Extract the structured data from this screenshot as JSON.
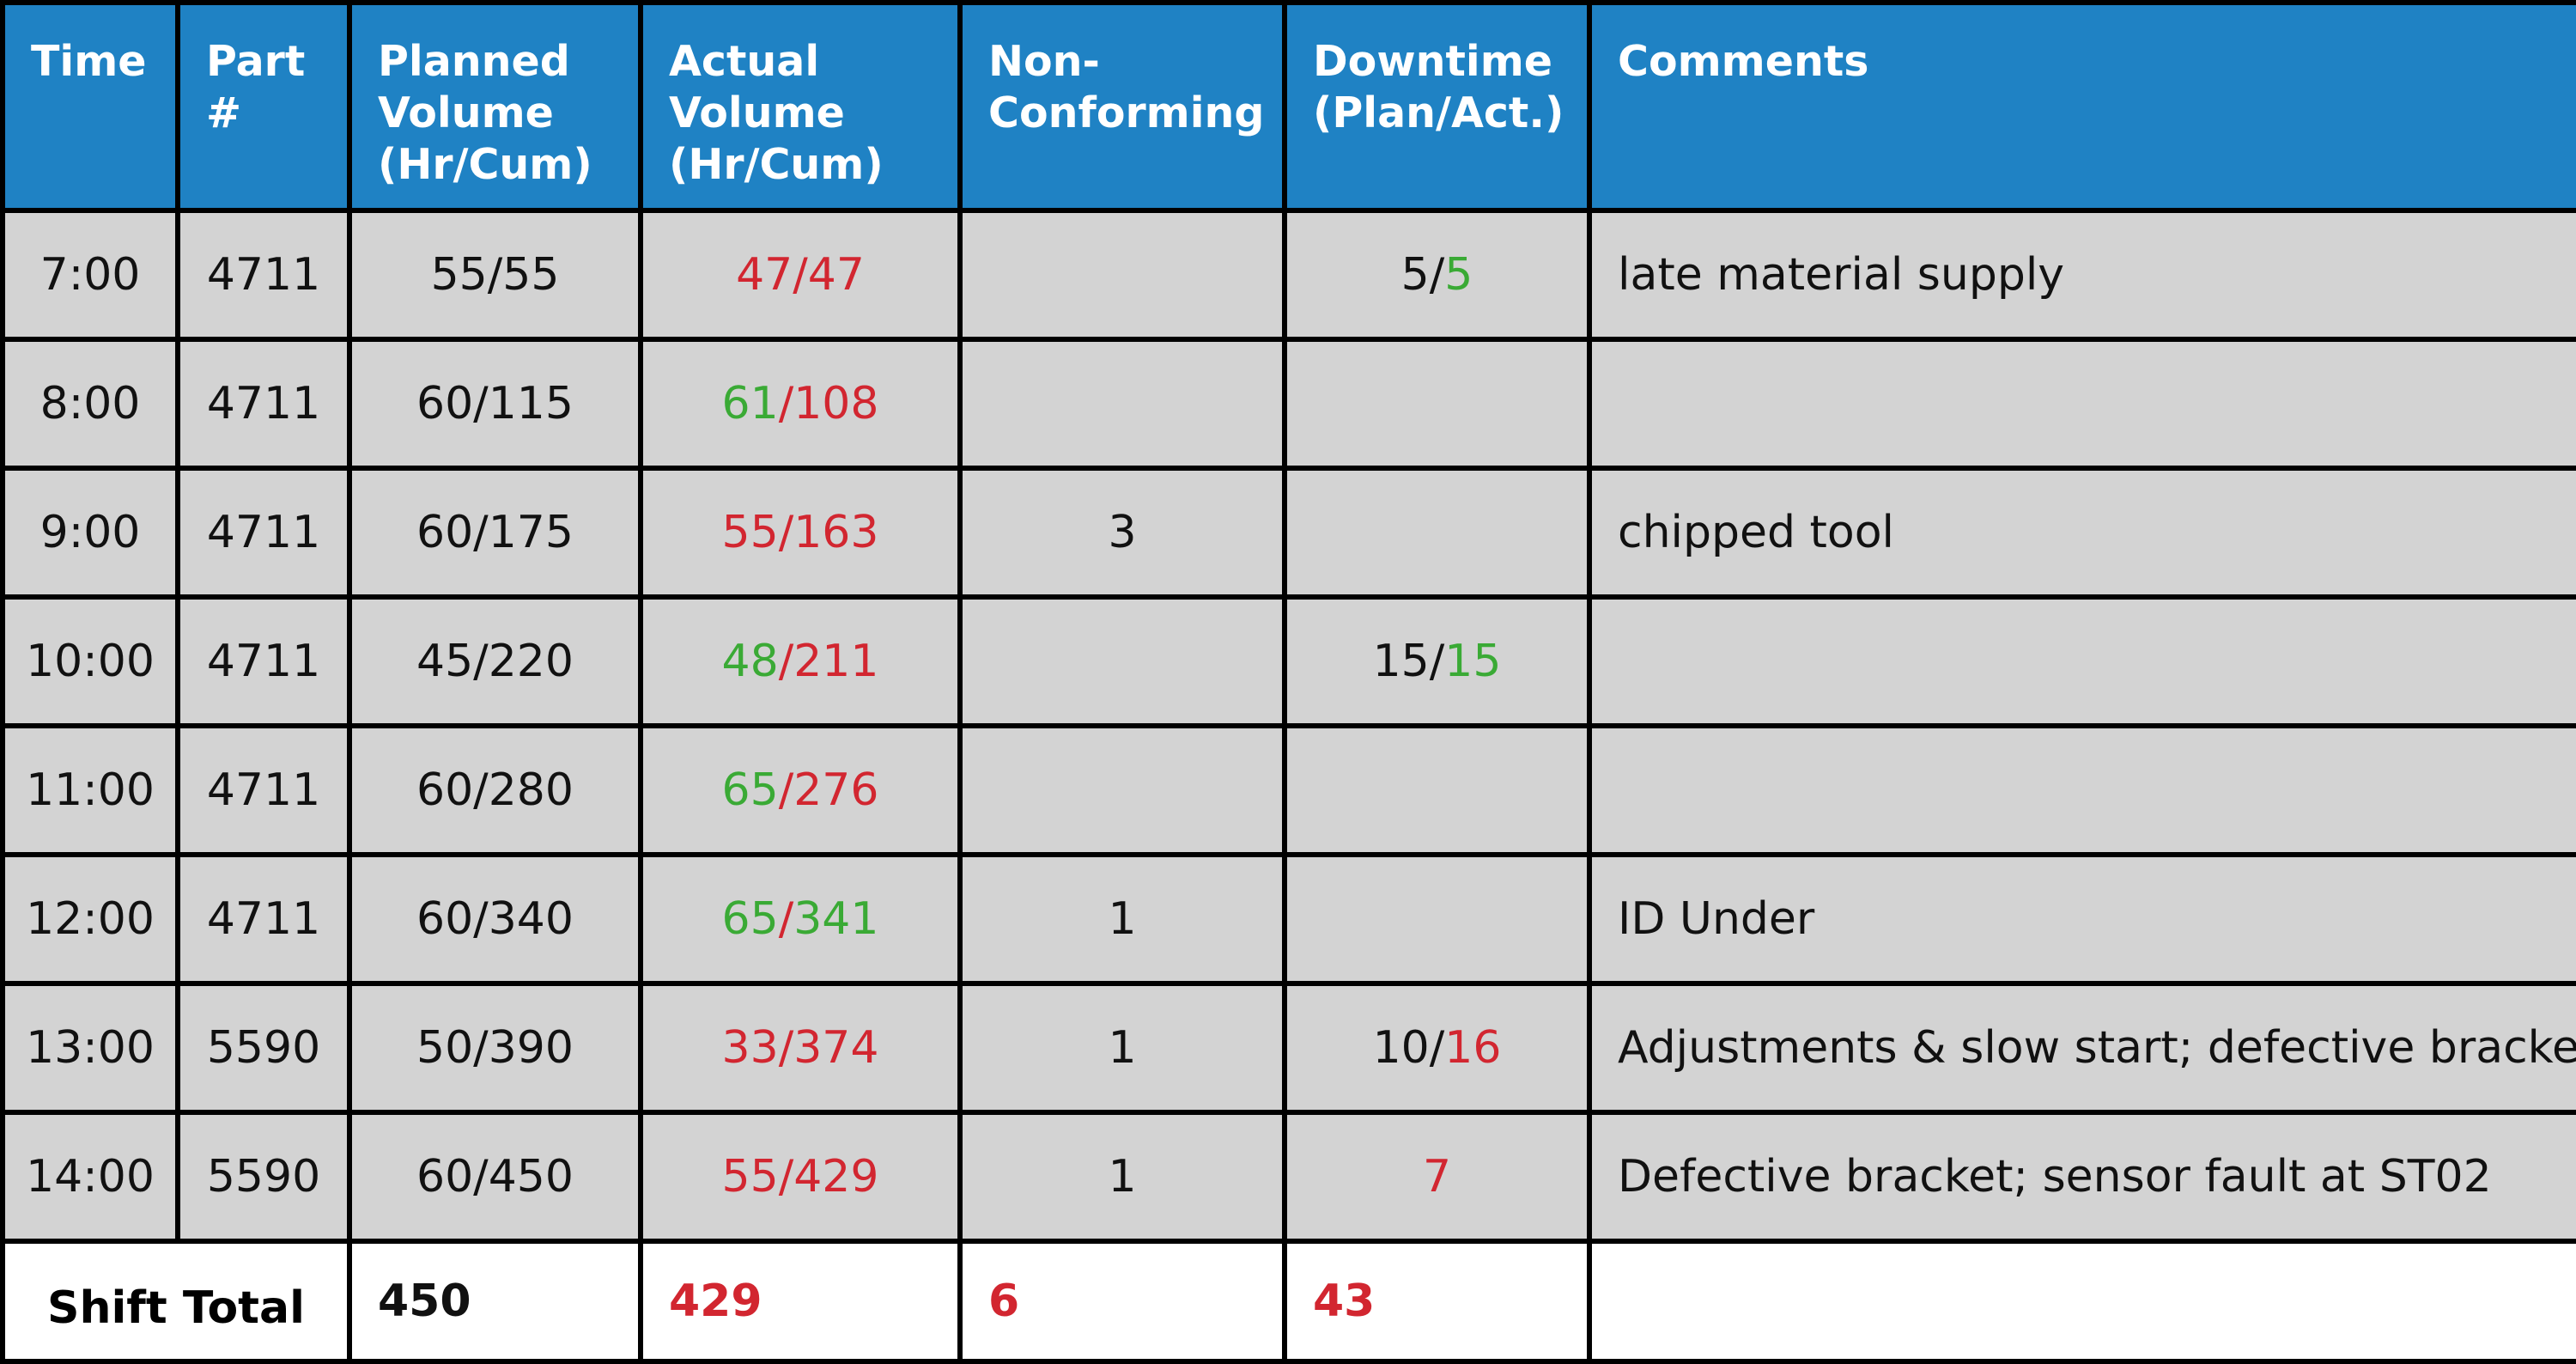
{
  "colors": {
    "header_bg": "#1f82c4",
    "cell_bg": "#d3d3d3",
    "good": "#3aaa35",
    "bad": "#d22630"
  },
  "headers": {
    "time": "Time",
    "part": "Part #",
    "planned": "Planned Volume (Hr/Cum)",
    "actual": "Actual Volume (Hr/Cum)",
    "nonconforming": "Non-Conforming",
    "downtime": "Downtime (Plan/Act.)",
    "comments": "Comments"
  },
  "rows": [
    {
      "time": "7:00",
      "part": "4711",
      "planned": "55/55",
      "actual_hr": "47",
      "actual_hr_status": "red",
      "actual_cum": "47",
      "actual_cum_status": "red",
      "nonconforming": "",
      "downtime_plan": "5",
      "downtime_act": "5",
      "downtime_act_status": "green",
      "comment": "late material supply"
    },
    {
      "time": "8:00",
      "part": "4711",
      "planned": "60/115",
      "actual_hr": "61",
      "actual_hr_status": "green",
      "actual_cum": "108",
      "actual_cum_status": "red",
      "nonconforming": "",
      "downtime_plan": "",
      "downtime_act": "",
      "downtime_act_status": "black",
      "comment": ""
    },
    {
      "time": "9:00",
      "part": "4711",
      "planned": "60/175",
      "actual_hr": "55",
      "actual_hr_status": "red",
      "actual_cum": "163",
      "actual_cum_status": "red",
      "nonconforming": "3",
      "downtime_plan": "",
      "downtime_act": "",
      "downtime_act_status": "black",
      "comment": "chipped tool"
    },
    {
      "time": "10:00",
      "part": "4711",
      "planned": "45/220",
      "actual_hr": "48",
      "actual_hr_status": "green",
      "actual_cum": "211",
      "actual_cum_status": "red",
      "nonconforming": "",
      "downtime_plan": "15",
      "downtime_act": "15",
      "downtime_act_status": "green",
      "comment": ""
    },
    {
      "time": "11:00",
      "part": "4711",
      "planned": "60/280",
      "actual_hr": "65",
      "actual_hr_status": "green",
      "actual_cum": "276",
      "actual_cum_status": "red",
      "nonconforming": "",
      "downtime_plan": "",
      "downtime_act": "",
      "downtime_act_status": "black",
      "comment": ""
    },
    {
      "time": "12:00",
      "part": "4711",
      "planned": "60/340",
      "actual_hr": "65",
      "actual_hr_status": "green",
      "actual_cum": "341",
      "actual_cum_status": "green",
      "nonconforming": "1",
      "downtime_plan": "",
      "downtime_act": "",
      "downtime_act_status": "black",
      "comment": "ID Under"
    },
    {
      "time": "13:00",
      "part": "5590",
      "planned": "50/390",
      "actual_hr": "33",
      "actual_hr_status": "red",
      "actual_cum": "374",
      "actual_cum_status": "red",
      "nonconforming": "1",
      "downtime_plan": "10",
      "downtime_act": "16",
      "downtime_act_status": "red",
      "comment": "Adjustments & slow start; defective bracket"
    },
    {
      "time": "14:00",
      "part": "5590",
      "planned": "60/450",
      "actual_hr": "55",
      "actual_hr_status": "red",
      "actual_cum": "429",
      "actual_cum_status": "red",
      "nonconforming": "1",
      "downtime_plan": "",
      "downtime_act": "7",
      "downtime_act_status": "red",
      "comment": "Defective bracket; sensor fault at ST02"
    }
  ],
  "totals": {
    "label": "Shift Total",
    "planned": "450",
    "actual": "429",
    "nonconforming": "6",
    "downtime": "43",
    "comment": ""
  }
}
